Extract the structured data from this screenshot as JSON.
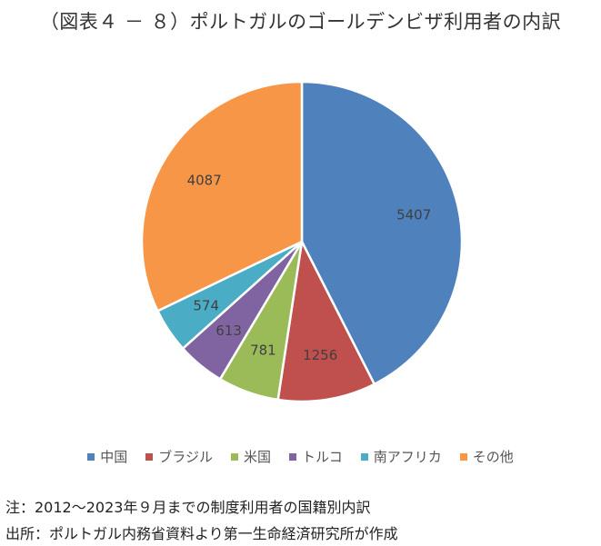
{
  "title": "（図表４ － ８）ポルトガルのゴールデンビザ利用者の内訳",
  "notes": {
    "note": "注：2012～2023年９月までの制度利用者の国籍別内訳",
    "source": "出所：ポルトガル内務省資料より第一生命経済研究所が作成"
  },
  "chart_data": {
    "type": "pie",
    "categories": [
      "中国",
      "ブラジル",
      "米国",
      "トルコ",
      "南アフリカ",
      "その他"
    ],
    "values": [
      5407,
      1256,
      781,
      613,
      574,
      4087
    ],
    "colors": [
      "#4F81BD",
      "#C0504D",
      "#9BBB59",
      "#8064A2",
      "#4BACC6",
      "#F79646"
    ],
    "title": "",
    "legend": "bottom"
  }
}
